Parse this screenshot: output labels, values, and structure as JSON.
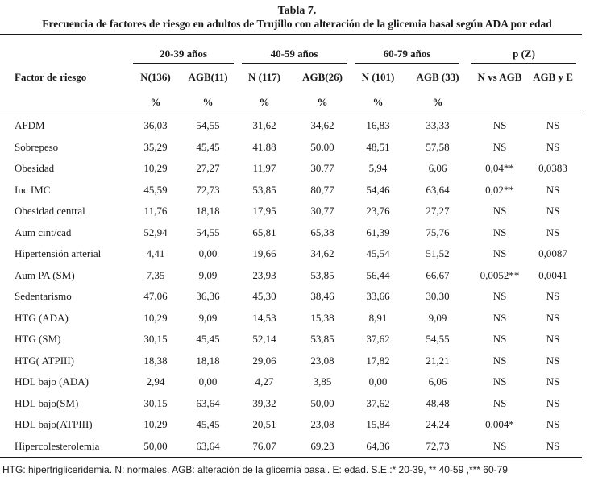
{
  "title": "Tabla 7.",
  "subtitle": "Frecuencia de factores de riesgo en adultos de Trujillo con alteración de la glicemia basal según ADA por edad",
  "header": {
    "row_label": "Factor de riesgo",
    "groups": [
      "20-39 años",
      "40-59 años",
      "60-79 años",
      "p (Z)"
    ],
    "subcols": [
      "N(136)",
      "AGB(11)",
      "N (117)",
      "AGB(26)",
      "N (101)",
      "AGB (33)",
      "N vs AGB",
      "AGB y E"
    ],
    "units": [
      "%",
      "%",
      "%",
      "%",
      "%",
      "%"
    ]
  },
  "rows": [
    {
      "factor": "AFDM",
      "values": [
        "36,03",
        "54,55",
        "31,62",
        "34,62",
        "16,83",
        "33,33",
        "NS",
        "NS"
      ]
    },
    {
      "factor": "Sobrepeso",
      "values": [
        "35,29",
        "45,45",
        "41,88",
        "50,00",
        "48,51",
        "57,58",
        "NS",
        "NS"
      ]
    },
    {
      "factor": "Obesidad",
      "values": [
        "10,29",
        "27,27",
        "11,97",
        "30,77",
        "5,94",
        "6,06",
        "0,04**",
        "0,0383"
      ]
    },
    {
      "factor": "Inc IMC",
      "values": [
        "45,59",
        "72,73",
        "53,85",
        "80,77",
        "54,46",
        "63,64",
        "0,02**",
        "NS"
      ]
    },
    {
      "factor": "Obesidad central",
      "values": [
        "11,76",
        "18,18",
        "17,95",
        "30,77",
        "23,76",
        "27,27",
        "NS",
        "NS"
      ]
    },
    {
      "factor": "Aum cint/cad",
      "values": [
        "52,94",
        "54,55",
        "65,81",
        "65,38",
        "61,39",
        "75,76",
        "NS",
        "NS"
      ]
    },
    {
      "factor": "Hipertensión arterial",
      "values": [
        "4,41",
        "0,00",
        "19,66",
        "34,62",
        "45,54",
        "51,52",
        "NS",
        "0,0087"
      ]
    },
    {
      "factor": "Aum PA (SM)",
      "values": [
        "7,35",
        "9,09",
        "23,93",
        "53,85",
        "56,44",
        "66,67",
        "0,0052**",
        "0,0041"
      ]
    },
    {
      "factor": "Sedentarismo",
      "values": [
        "47,06",
        "36,36",
        "45,30",
        "38,46",
        "33,66",
        "30,30",
        "NS",
        "NS"
      ]
    },
    {
      "factor": "HTG (ADA)",
      "values": [
        "10,29",
        "9,09",
        "14,53",
        "15,38",
        "8,91",
        "9,09",
        "NS",
        "NS"
      ]
    },
    {
      "factor": "HTG (SM)",
      "values": [
        "30,15",
        "45,45",
        "52,14",
        "53,85",
        "37,62",
        "54,55",
        "NS",
        "NS"
      ]
    },
    {
      "factor": "HTG( ATPIII)",
      "values": [
        "18,38",
        "18,18",
        "29,06",
        "23,08",
        "17,82",
        "21,21",
        "NS",
        "NS"
      ]
    },
    {
      "factor": "HDL bajo (ADA)",
      "values": [
        "2,94",
        "0,00",
        "4,27",
        "3,85",
        "0,00",
        "6,06",
        "NS",
        "NS"
      ]
    },
    {
      "factor": "HDL bajo(SM)",
      "values": [
        "30,15",
        "63,64",
        "39,32",
        "50,00",
        "37,62",
        "48,48",
        "NS",
        "NS"
      ]
    },
    {
      "factor": "HDL bajo(ATPIII)",
      "values": [
        "10,29",
        "45,45",
        "20,51",
        "23,08",
        "15,84",
        "24,24",
        "0,004*",
        "NS"
      ]
    },
    {
      "factor": "Hipercolesterolemia",
      "values": [
        "50,00",
        "63,64",
        "76,07",
        "69,23",
        "64,36",
        "72,73",
        "NS",
        "NS"
      ]
    }
  ],
  "footnote": "HTG: hipertrigliceridemia. N: normales. AGB: alteración de la glicemia basal. E: edad. S.E.:* 20-39, ** 40-59 ,*** 60-79"
}
